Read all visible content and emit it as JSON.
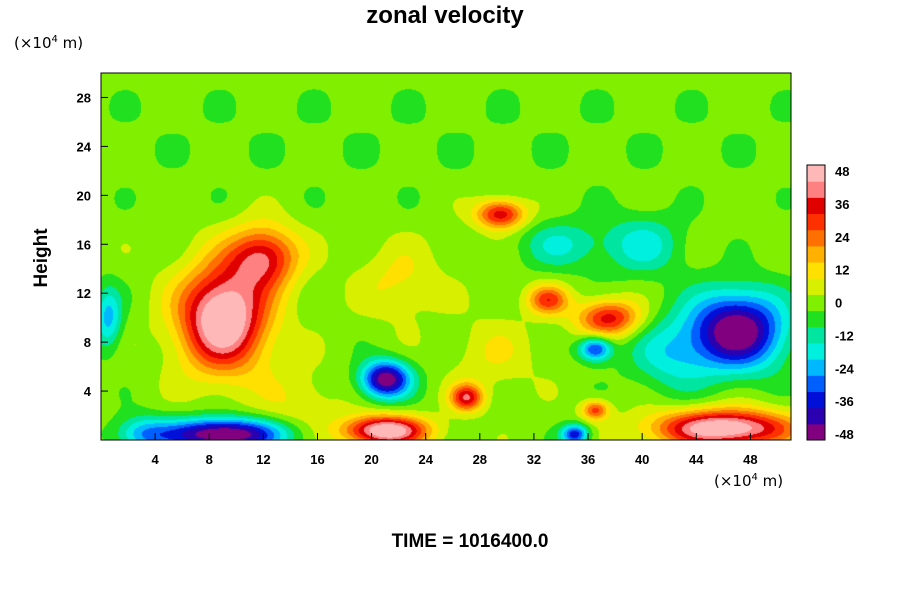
{
  "page": {
    "title": "zonal velocity",
    "y_unit_prefix": "(×10",
    "y_unit_exp": "4",
    "y_unit_suffix": " m)",
    "x_unit_prefix": "(×10",
    "x_unit_exp": "4",
    "x_unit_suffix": " m)",
    "ylabel": "Height",
    "footer": "TIME = 1016400.0"
  },
  "chart_data": {
    "type": "heatmap",
    "title": "zonal velocity",
    "xlabel": "",
    "ylabel": "Height",
    "xlim": [
      0,
      51
    ],
    "ylim": [
      0,
      30
    ],
    "x_ticks": [
      4,
      8,
      12,
      16,
      20,
      24,
      28,
      32,
      36,
      40,
      44,
      48
    ],
    "y_ticks": [
      4,
      8,
      12,
      16,
      20,
      24,
      28
    ],
    "colorbar": {
      "ticks": [
        48,
        36,
        24,
        12,
        0,
        -12,
        -24,
        -36,
        -48
      ],
      "range": [
        -48,
        48
      ],
      "colors": [
        "#800080",
        "#2a00b0",
        "#0010d8",
        "#0060ff",
        "#00b8ff",
        "#00f0e0",
        "#00e6a0",
        "#20e020",
        "#80f000",
        "#d8f000",
        "#ffe000",
        "#ffb000",
        "#ff7000",
        "#ff3000",
        "#e00000",
        "#ff8080",
        "#ffb8b8"
      ]
    },
    "features": [
      {
        "x": 26,
        "y": 25,
        "value": -2,
        "sx": 60,
        "sy": 5
      },
      {
        "x": 9,
        "y": 10,
        "value": 55,
        "sx": 3.2,
        "sy": 4.2
      },
      {
        "x": 12,
        "y": 15,
        "value": 35,
        "sx": 2.5,
        "sy": 2.5
      },
      {
        "x": 9,
        "y": 0.5,
        "value": -52,
        "sx": 4.5,
        "sy": 1.3
      },
      {
        "x": 3,
        "y": 0.5,
        "value": -18,
        "sx": 2,
        "sy": 1.5
      },
      {
        "x": 21,
        "y": 0.8,
        "value": 52,
        "sx": 3,
        "sy": 1.2
      },
      {
        "x": 46,
        "y": 1,
        "value": 52,
        "sx": 5,
        "sy": 1.5
      },
      {
        "x": 47,
        "y": 9,
        "value": -50,
        "sx": 3.5,
        "sy": 3.2
      },
      {
        "x": 0.5,
        "y": 10,
        "value": -22,
        "sx": 1,
        "sy": 2.5
      },
      {
        "x": 21,
        "y": 5,
        "value": -48,
        "sx": 1.8,
        "sy": 1.5
      },
      {
        "x": 29.5,
        "y": 18.5,
        "value": 36,
        "sx": 1.8,
        "sy": 1.2
      },
      {
        "x": 37.5,
        "y": 10,
        "value": 34,
        "sx": 2.3,
        "sy": 1.5
      },
      {
        "x": 33,
        "y": 11.5,
        "value": 28,
        "sx": 1.5,
        "sy": 1.2
      },
      {
        "x": 27,
        "y": 3.5,
        "value": 35,
        "sx": 1.2,
        "sy": 1.1
      },
      {
        "x": 36.5,
        "y": 2.5,
        "value": 28,
        "sx": 1,
        "sy": 0.8
      },
      {
        "x": 42,
        "y": 7,
        "value": -16,
        "sx": 3,
        "sy": 3
      },
      {
        "x": 36.5,
        "y": 7.5,
        "value": -35,
        "sx": 1.2,
        "sy": 1
      },
      {
        "x": 35,
        "y": 0.5,
        "value": -36,
        "sx": 1,
        "sy": 0.8
      },
      {
        "x": 40,
        "y": 16,
        "value": -16,
        "sx": 3,
        "sy": 2.5
      },
      {
        "x": 34,
        "y": 16,
        "value": -14,
        "sx": 3,
        "sy": 2
      },
      {
        "x": 22,
        "y": 13,
        "value": 10,
        "sx": 3,
        "sy": 3
      },
      {
        "x": 14.5,
        "y": 3,
        "value": 8,
        "sx": 3,
        "sy": 3
      },
      {
        "x": 29,
        "y": 7,
        "value": 8,
        "sx": 3,
        "sy": 3
      }
    ]
  }
}
